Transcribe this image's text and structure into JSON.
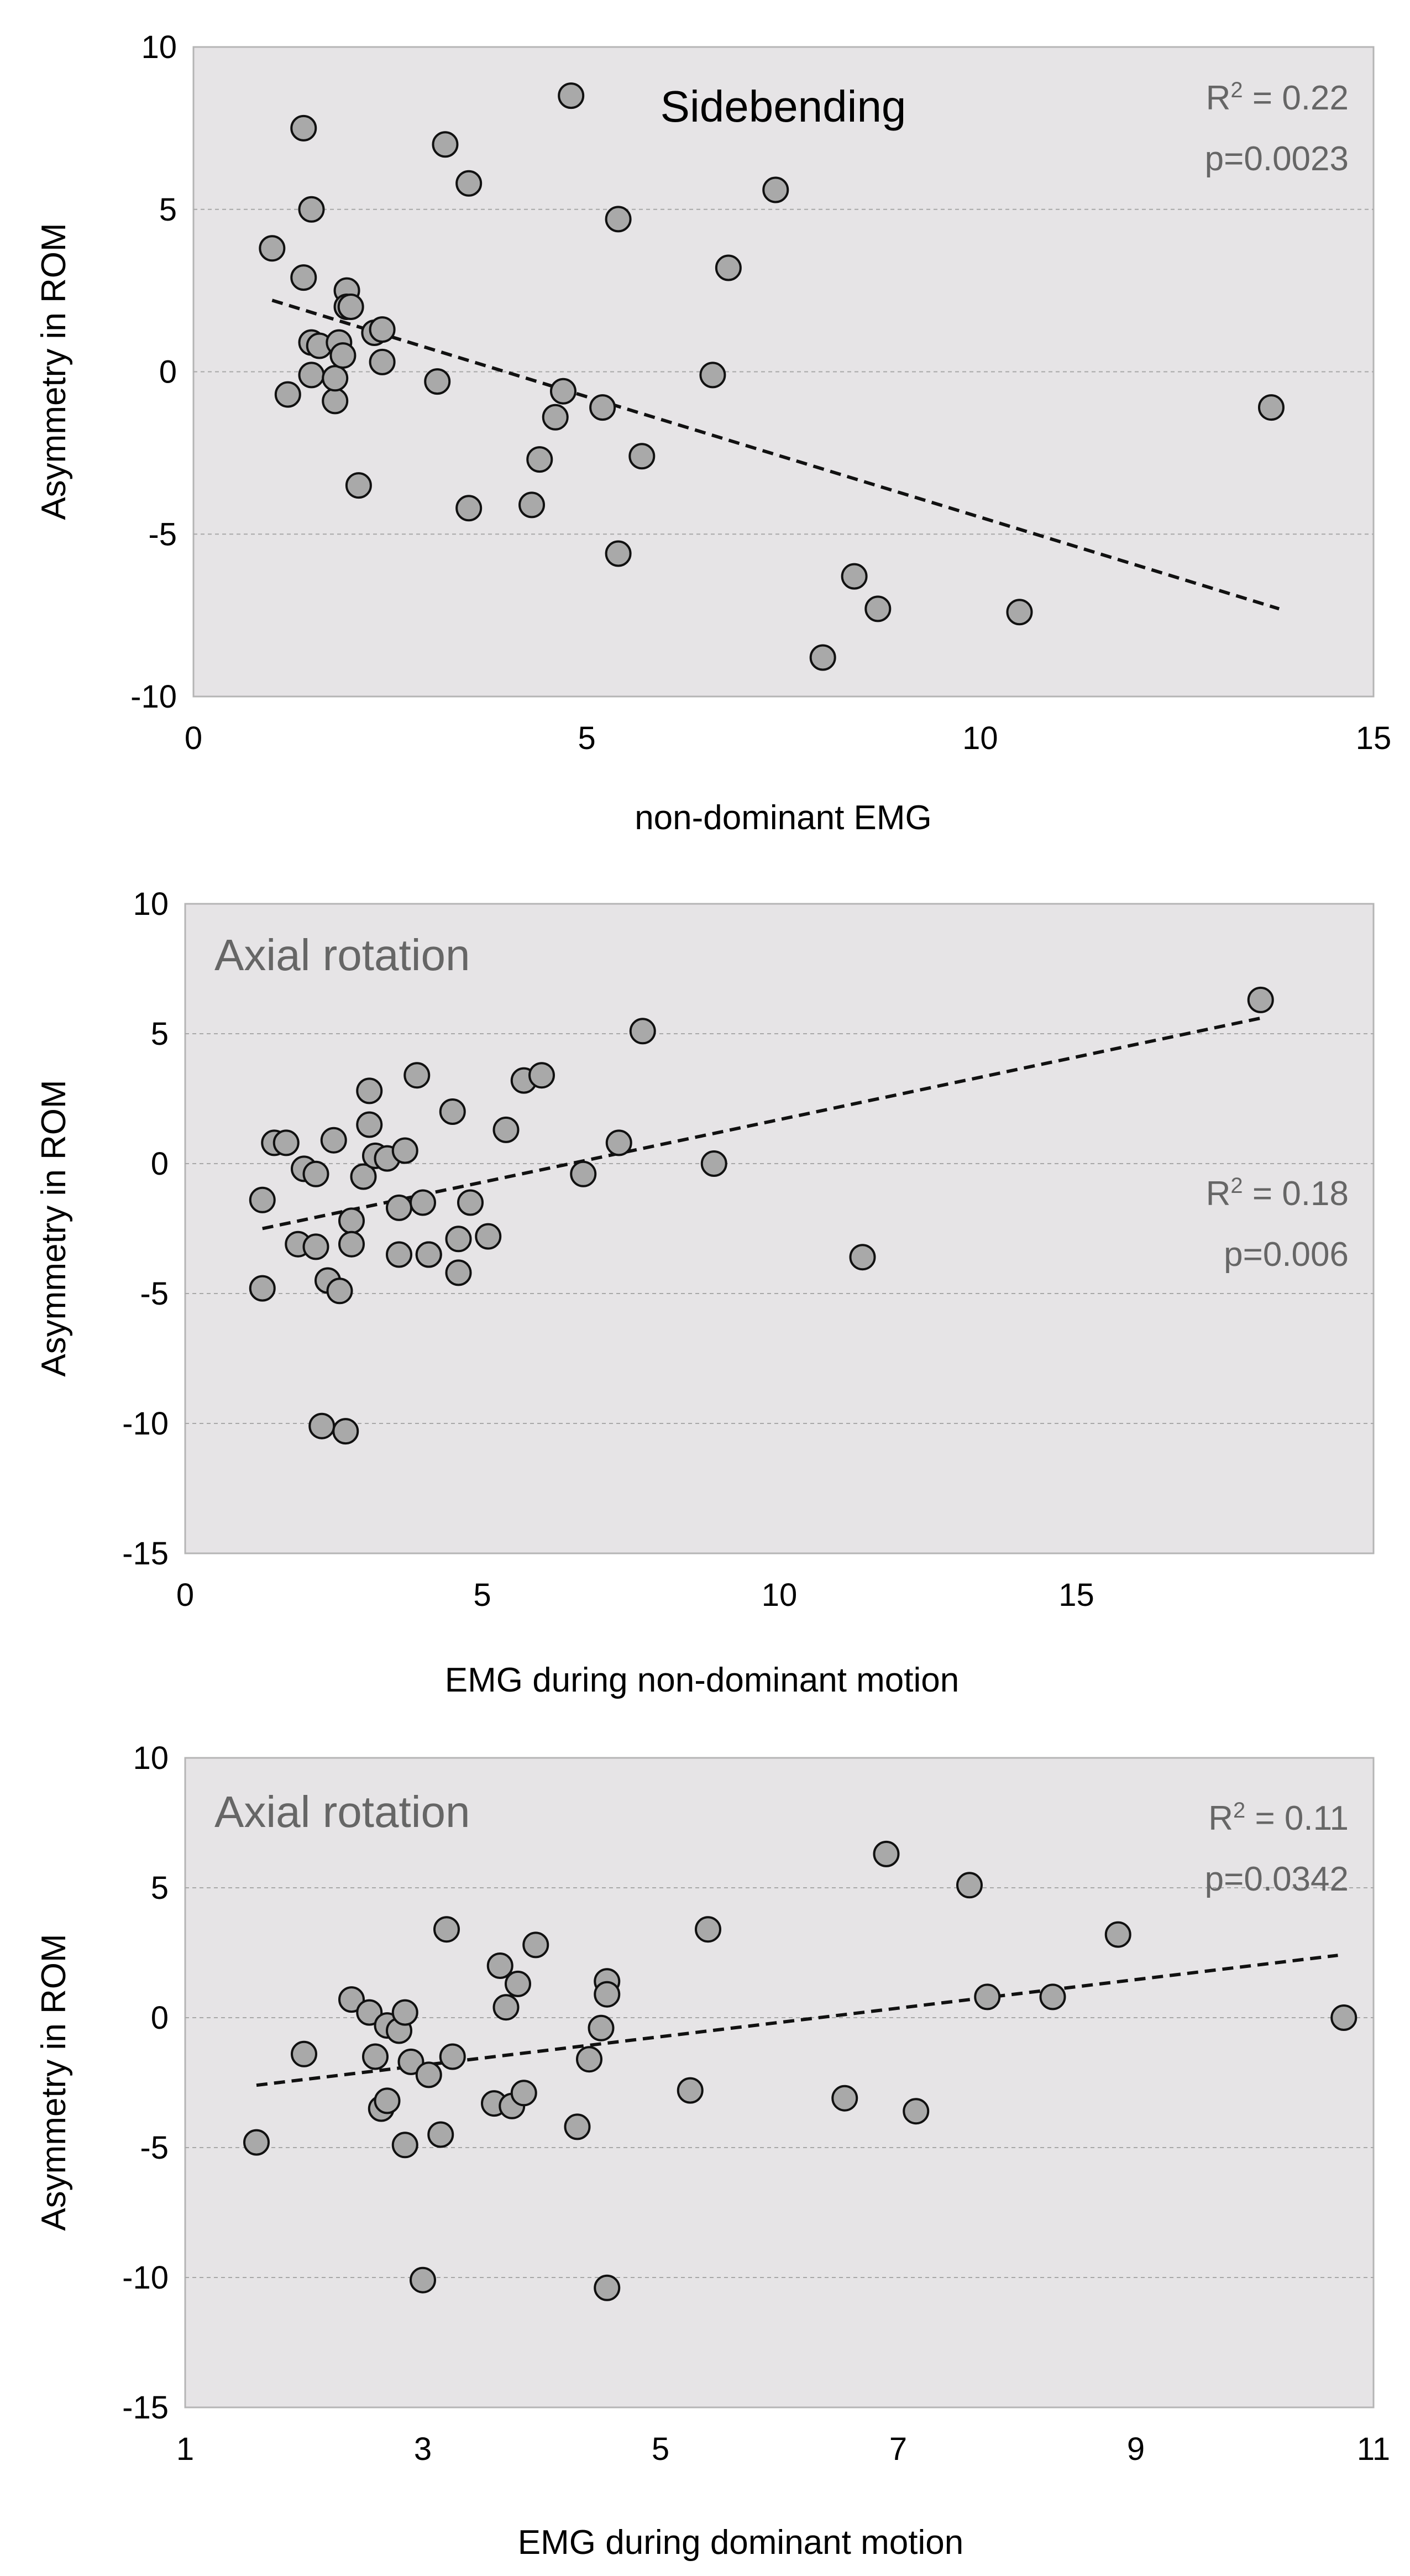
{
  "colors": {
    "plot_background": "#e6e4e6",
    "plot_border": "#b5b5b5",
    "gridline": "#a8a8a8",
    "marker_fill": "#a9a9a9",
    "marker_edge": "#111111",
    "trendline": "#111111",
    "stat_text": "#666666"
  },
  "chart_data": [
    {
      "type": "scatter",
      "title": "Sidebending",
      "title_style": "dark",
      "title_position": "top-center",
      "xlabel": "non-dominant EMG",
      "ylabel": "Asymmetry in ROM",
      "xlim": [
        0,
        15
      ],
      "ylim": [
        -10,
        10
      ],
      "x_ticks": [
        0,
        5,
        10,
        15
      ],
      "x_tick_labels": [
        "0",
        "5",
        "10",
        "15"
      ],
      "y_ticks": [
        -10,
        -5,
        0,
        5,
        10
      ],
      "y_tick_labels": [
        "-10",
        "-5",
        "0",
        "5",
        "10"
      ],
      "gridlines_y": [
        -5,
        0,
        5
      ],
      "stats": {
        "r2": {
          "label": "R",
          "sup": "2",
          "rest": " = 0.22"
        },
        "p": "p=0.0023",
        "position": "top-right"
      },
      "trendline": {
        "x": [
          1.0,
          13.8
        ],
        "y": [
          2.2,
          -7.3
        ]
      },
      "x": [
        1.0,
        1.2,
        1.4,
        1.4,
        1.5,
        1.5,
        1.5,
        1.6,
        1.8,
        1.8,
        1.85,
        1.9,
        1.95,
        1.95,
        2.0,
        2.1,
        2.3,
        2.4,
        2.4,
        3.1,
        3.2,
        3.5,
        3.5,
        4.3,
        4.4,
        4.6,
        4.7,
        4.8,
        5.2,
        5.4,
        5.4,
        5.7,
        6.6,
        6.8,
        7.4,
        8.0,
        8.4,
        8.7,
        10.5,
        13.7
      ],
      "y": [
        3.8,
        -0.7,
        7.5,
        2.9,
        5.0,
        0.9,
        -0.1,
        0.8,
        -0.9,
        -0.2,
        0.9,
        0.5,
        2.5,
        2.0,
        2.0,
        -3.5,
        1.2,
        1.3,
        0.3,
        -0.3,
        7.0,
        5.8,
        -4.2,
        -4.1,
        -2.7,
        -1.4,
        -0.6,
        8.5,
        -1.1,
        4.7,
        -5.6,
        -2.6,
        -0.1,
        3.2,
        5.6,
        -8.8,
        -6.3,
        -7.3,
        -7.4,
        -1.1
      ]
    },
    {
      "type": "scatter",
      "title": "Axial rotation",
      "title_style": "gray",
      "title_position": "top-left",
      "xlabel": "EMG during non-dominant motion",
      "ylabel": "Asymmetry in ROM",
      "xlim": [
        0,
        20
      ],
      "ylim": [
        -15,
        10
      ],
      "x_ticks": [
        0,
        5,
        10,
        15
      ],
      "x_tick_labels": [
        "0",
        "5",
        "10",
        "15"
      ],
      "y_ticks": [
        -15,
        -10,
        -5,
        0,
        5,
        10
      ],
      "y_tick_labels": [
        "-15",
        "-10",
        "-5",
        "0",
        "5",
        "10"
      ],
      "gridlines_y": [
        -10,
        -5,
        0,
        5
      ],
      "stats": {
        "r2": {
          "label": "R",
          "sup": "2",
          "rest": " = 0.18"
        },
        "p": "p=0.006",
        "position": "right"
      },
      "trendline": {
        "x": [
          1.3,
          18.1
        ],
        "y": [
          -2.5,
          5.6
        ]
      },
      "x": [
        1.3,
        1.3,
        1.5,
        1.7,
        1.9,
        2.0,
        2.2,
        2.2,
        2.3,
        2.4,
        2.5,
        2.6,
        2.7,
        2.8,
        2.8,
        3.0,
        3.1,
        3.1,
        3.2,
        3.4,
        3.6,
        3.6,
        3.7,
        3.9,
        4.0,
        4.1,
        4.1,
        4.5,
        4.6,
        4.6,
        4.8,
        5.1,
        5.4,
        5.7,
        6.0,
        6.7,
        7.3,
        7.7,
        8.9,
        11.4,
        18.1
      ],
      "y": [
        -1.4,
        -4.8,
        0.8,
        0.8,
        -3.1,
        -0.2,
        -0.4,
        -3.2,
        -10.1,
        -4.5,
        0.9,
        -4.9,
        -10.3,
        -2.2,
        -3.1,
        -0.5,
        2.8,
        1.5,
        0.3,
        0.2,
        -1.7,
        -3.5,
        0.5,
        3.4,
        -1.5,
        -3.5,
        -3.5,
        2.0,
        -2.9,
        -4.2,
        -1.5,
        -2.8,
        1.3,
        3.2,
        3.4,
        -0.4,
        0.8,
        5.1,
        0.0,
        -3.6,
        6.3
      ]
    },
    {
      "type": "scatter",
      "title": "Axial rotation",
      "title_style": "gray",
      "title_position": "top-left",
      "xlabel": "EMG during dominant motion",
      "ylabel": "Asymmetry in ROM",
      "xlim": [
        1,
        11
      ],
      "ylim": [
        -15,
        10
      ],
      "x_ticks": [
        1,
        3,
        5,
        7,
        9,
        11
      ],
      "x_tick_labels": [
        "1",
        "3",
        "5",
        "7",
        "9",
        "11"
      ],
      "y_ticks": [
        -15,
        -10,
        -5,
        0,
        5,
        10
      ],
      "y_tick_labels": [
        "-15",
        "-10",
        "-5",
        "0",
        "5",
        "10"
      ],
      "gridlines_y": [
        -10,
        -5,
        0,
        5
      ],
      "stats": {
        "r2": {
          "label": "R",
          "sup": "2",
          "rest": " = 0.11"
        },
        "p": "p=0.0342",
        "position": "top-right"
      },
      "trendline": {
        "x": [
          1.6,
          10.7
        ],
        "y": [
          -2.6,
          2.4
        ]
      },
      "x": [
        1.6,
        2.0,
        2.4,
        2.55,
        2.6,
        2.65,
        2.7,
        2.7,
        2.8,
        2.85,
        2.85,
        2.9,
        3.0,
        3.05,
        3.15,
        3.2,
        3.25,
        3.6,
        3.65,
        3.7,
        3.75,
        3.8,
        3.85,
        3.95,
        4.3,
        4.4,
        4.5,
        4.55,
        4.55,
        4.55,
        5.25,
        5.4,
        6.55,
        6.9,
        7.15,
        7.6,
        7.75,
        8.3,
        8.85,
        10.75
      ],
      "y": [
        -4.8,
        -1.4,
        0.7,
        0.2,
        -1.5,
        -3.5,
        -0.3,
        -3.2,
        -0.5,
        -4.9,
        0.2,
        -1.7,
        -10.1,
        -2.2,
        -4.5,
        3.4,
        -1.5,
        -3.3,
        2.0,
        0.4,
        -3.4,
        1.3,
        -2.9,
        2.8,
        -4.2,
        -1.6,
        -0.4,
        1.4,
        0.9,
        -10.4,
        -2.8,
        3.4,
        -3.1,
        6.3,
        -3.6,
        5.1,
        0.8,
        0.8,
        3.2,
        0.0
      ]
    }
  ]
}
